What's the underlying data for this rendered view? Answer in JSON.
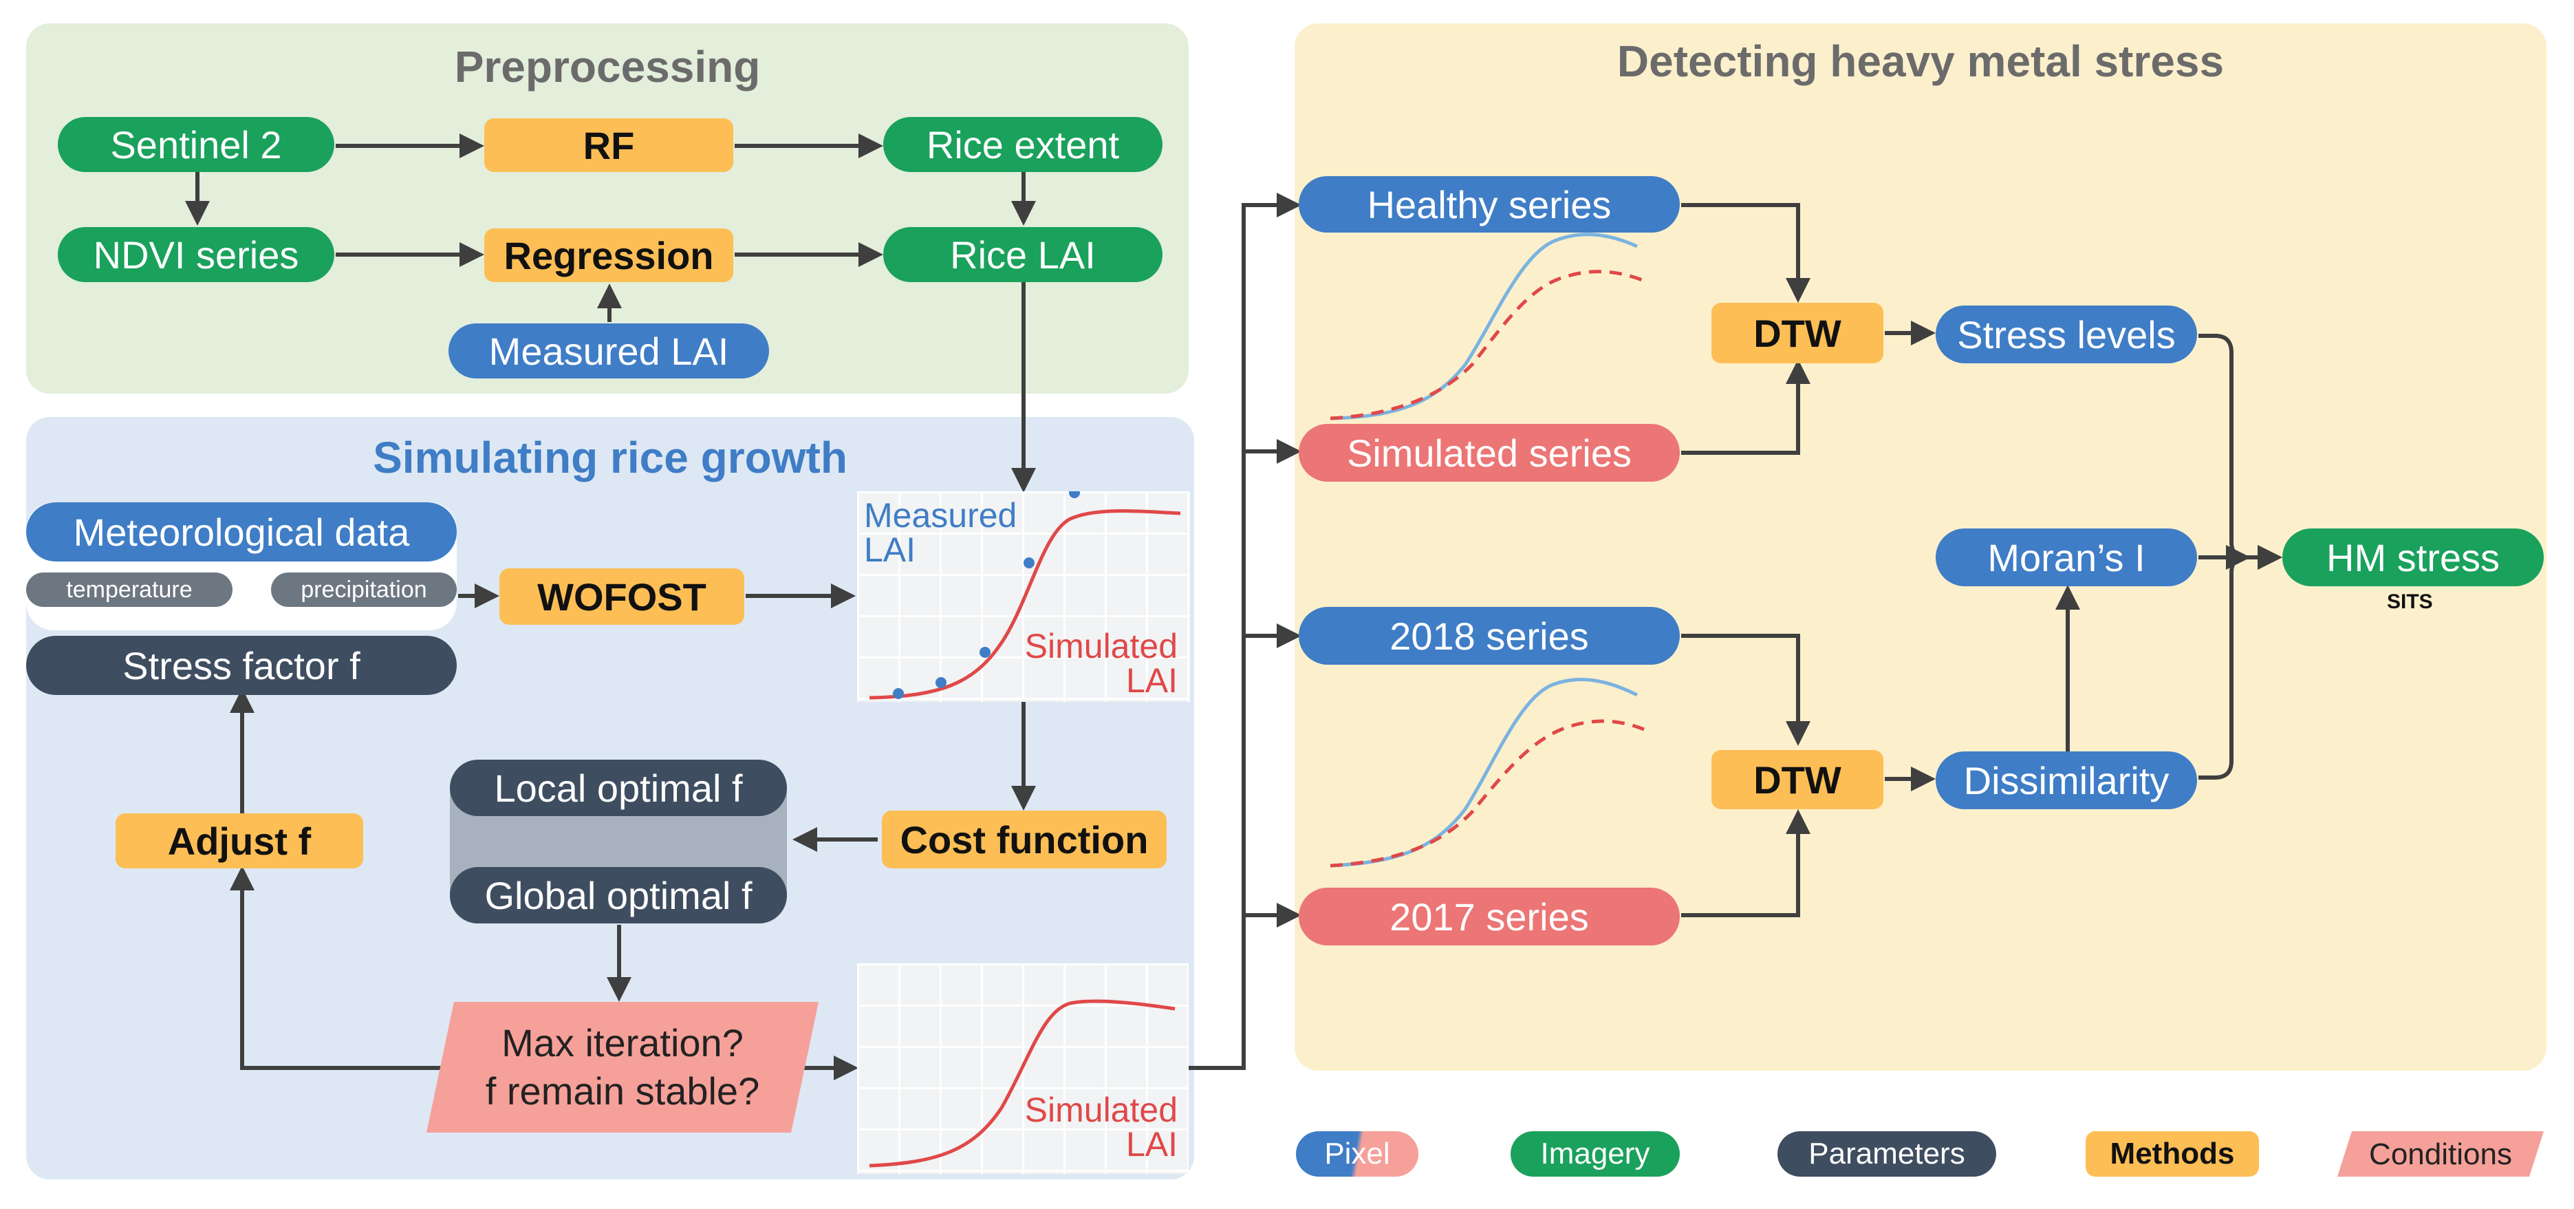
{
  "panels": {
    "preprocessing": "Preprocessing",
    "simulating": "Simulating rice growth",
    "detecting": "Detecting heavy metal stress"
  },
  "preprocessing": {
    "sentinel": "Sentinel 2",
    "rf": "RF",
    "rice_extent": "Rice extent",
    "ndvi": "NDVI series",
    "regression": "Regression",
    "rice_lai": "Rice LAI",
    "measured_lai": "Measured LAI"
  },
  "simulating": {
    "meteo": "Meteorological data",
    "temperature": "temperature",
    "precipitation": "precipitation",
    "wofost": "WOFOST",
    "stress_factor": "Stress factor f",
    "adjust": "Adjust f",
    "local_optimal": "Local optimal f",
    "global_optimal": "Global optimal f",
    "cost_function": "Cost function",
    "max_iteration": "Max iteration?",
    "remain_stable": "f remain stable?",
    "chart1_measured": "Measured LAI",
    "chart1_simulated": "Simulated LAI",
    "chart2_simulated": "Simulated LAI"
  },
  "detecting": {
    "healthy": "Healthy series",
    "simulated_series": "Simulated series",
    "dtw1": "DTW",
    "stress_levels": "Stress levels",
    "morans": "Moran’s I",
    "hm_stress": "HM stress",
    "sits": "SITS",
    "series2018": "2018 series",
    "series2017": "2017 series",
    "dtw2": "DTW",
    "dissimilarity": "Dissimilarity"
  },
  "legend": {
    "pixel": "Pixel",
    "imagery": "Imagery",
    "parameters": "Parameters",
    "methods": "Methods",
    "conditions": "Conditions"
  },
  "colors": {
    "green": "#1aa15c",
    "blue": "#3f7dc6",
    "red": "#ec7575",
    "orange": "#fdbe55",
    "dark": "#3f4d60",
    "condition": "#f6a09a",
    "measured_points": "#3f7dc6",
    "simulated_line": "#e04848",
    "healthy_line": "#7bb3e0"
  }
}
